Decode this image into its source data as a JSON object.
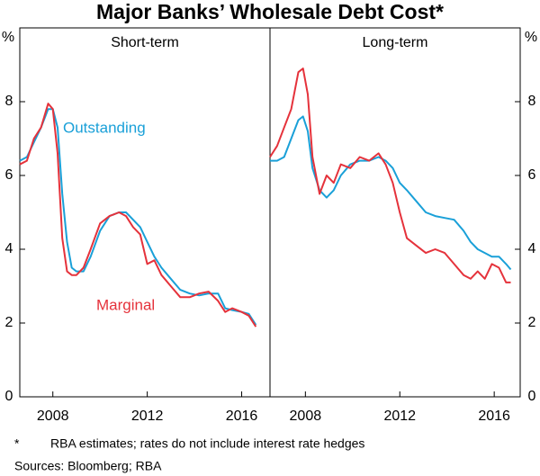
{
  "title": "Major Banks’ Wholesale Debt Cost*",
  "footnote_mark": "*",
  "footnote": "RBA estimates; rates do not include interest rate hedges",
  "sources": "Sources:  Bloomberg; RBA",
  "chart_data": [
    {
      "type": "line",
      "title": "Short-term",
      "ylabel": "%",
      "x": [
        2006.6,
        2006.9,
        2007.2,
        2007.5,
        2007.8,
        2008.0,
        2008.2,
        2008.4,
        2008.6,
        2008.8,
        2009.0,
        2009.3,
        2009.6,
        2010.0,
        2010.4,
        2010.8,
        2011.1,
        2011.4,
        2011.7,
        2012.0,
        2012.3,
        2012.6,
        2013.0,
        2013.4,
        2013.8,
        2014.2,
        2014.6,
        2015.0,
        2015.3,
        2015.6,
        2016.0,
        2016.3,
        2016.6
      ],
      "series": [
        {
          "name": "Outstanding",
          "color": "#1aa0d8",
          "values": [
            6.4,
            6.5,
            6.9,
            7.3,
            7.8,
            7.8,
            7.3,
            5.5,
            4.2,
            3.5,
            3.4,
            3.4,
            3.8,
            4.5,
            4.9,
            5.0,
            5.0,
            4.8,
            4.6,
            4.2,
            3.8,
            3.5,
            3.2,
            2.9,
            2.8,
            2.75,
            2.8,
            2.8,
            2.4,
            2.35,
            2.3,
            2.25,
            1.95
          ]
        },
        {
          "name": "Marginal",
          "color": "#e5323b",
          "values": [
            6.3,
            6.4,
            7.0,
            7.3,
            7.95,
            7.8,
            6.6,
            4.3,
            3.4,
            3.3,
            3.3,
            3.5,
            4.0,
            4.7,
            4.9,
            5.0,
            4.9,
            4.6,
            4.4,
            3.6,
            3.7,
            3.3,
            3.0,
            2.7,
            2.7,
            2.8,
            2.85,
            2.6,
            2.3,
            2.4,
            2.3,
            2.2,
            1.9
          ]
        }
      ],
      "xlim": [
        2006.6,
        2017.2
      ],
      "xticks": [
        2008,
        2012,
        2016
      ],
      "ylim": [
        0,
        10
      ],
      "yticks": [
        0,
        2,
        4,
        6,
        8
      ],
      "yaxis_side": "left"
    },
    {
      "type": "line",
      "title": "Long-term",
      "ylabel": "%",
      "x": [
        2006.5,
        2006.8,
        2007.1,
        2007.4,
        2007.7,
        2007.9,
        2008.1,
        2008.3,
        2008.6,
        2008.9,
        2009.2,
        2009.5,
        2009.9,
        2010.3,
        2010.7,
        2011.1,
        2011.4,
        2011.7,
        2012.0,
        2012.3,
        2012.7,
        2013.1,
        2013.5,
        2013.9,
        2014.3,
        2014.7,
        2015.0,
        2015.3,
        2015.6,
        2015.9,
        2016.2,
        2016.5,
        2016.7
      ],
      "series": [
        {
          "color": "#1aa0d8",
          "values": [
            6.4,
            6.4,
            6.5,
            7.0,
            7.5,
            7.6,
            7.2,
            6.2,
            5.6,
            5.4,
            5.6,
            6.0,
            6.3,
            6.4,
            6.4,
            6.5,
            6.4,
            6.2,
            5.8,
            5.6,
            5.3,
            5.0,
            4.9,
            4.85,
            4.8,
            4.5,
            4.2,
            4.0,
            3.9,
            3.8,
            3.8,
            3.6,
            3.45
          ]
        },
        {
          "color": "#e5323b",
          "values": [
            6.5,
            6.8,
            7.3,
            7.8,
            8.8,
            8.9,
            8.2,
            6.5,
            5.5,
            6.0,
            5.8,
            6.3,
            6.2,
            6.5,
            6.4,
            6.6,
            6.3,
            5.8,
            5.0,
            4.3,
            4.1,
            3.9,
            4.0,
            3.9,
            3.6,
            3.3,
            3.2,
            3.4,
            3.2,
            3.6,
            3.5,
            3.1,
            3.1
          ]
        }
      ],
      "xlim": [
        2006.5,
        2017.1
      ],
      "xticks": [
        2008,
        2012,
        2016
      ],
      "ylim": [
        0,
        10
      ],
      "yticks": [
        0,
        2,
        4,
        6,
        8
      ],
      "yaxis_side": "right"
    }
  ]
}
